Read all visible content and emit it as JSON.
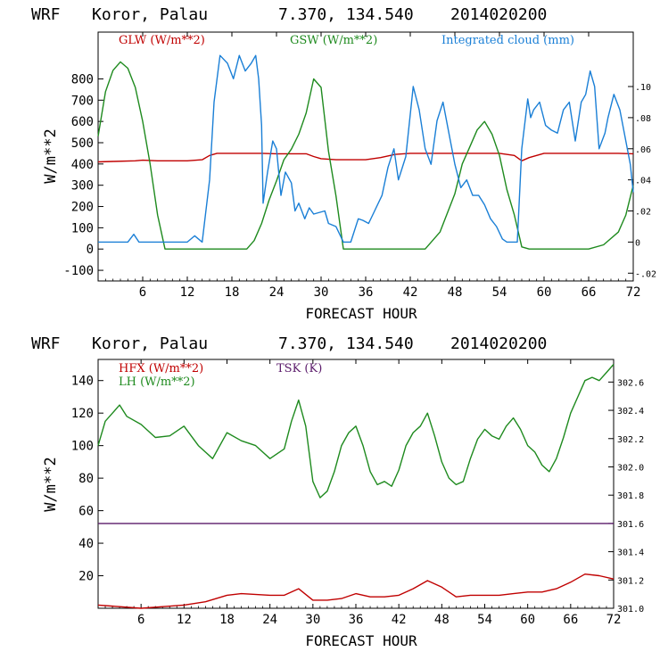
{
  "charts_header": [
    {
      "model": "WRF",
      "location": "Koror, Palau",
      "coords": "7.370, 134.540",
      "init": "2014020200"
    },
    {
      "model": "WRF",
      "location": "Koror, Palau",
      "coords": "7.370, 134.540",
      "init": "2014020200"
    }
  ],
  "colors": {
    "red": "#c00000",
    "green": "#1e8a1e",
    "blue": "#1a7fd6",
    "purple": "#5a1a6a",
    "axis": "#000000"
  },
  "chart_data": [
    {
      "type": "line",
      "xlabel": "FORECAST HOUR",
      "ylabel": "W/m**2",
      "xlim": [
        0,
        72
      ],
      "ylim": [
        -150,
        1020
      ],
      "y2lim": [
        -0.025,
        0.135
      ],
      "x_ticks": [
        6,
        12,
        18,
        24,
        30,
        36,
        42,
        48,
        54,
        60,
        66,
        72
      ],
      "y_ticks": [
        -100,
        0,
        100,
        200,
        300,
        400,
        500,
        600,
        700,
        800
      ],
      "y2_ticks": [
        -0.02,
        0,
        0.02,
        0.04,
        0.06,
        0.08,
        0.1
      ],
      "y2_tick_labels": [
        "-.02",
        "0",
        ".02",
        ".04",
        ".06",
        ".08",
        ".10"
      ],
      "series": [
        {
          "name": "GLW (W/m**2)",
          "color": "red",
          "axis": "left",
          "x": [
            0,
            2,
            5,
            6,
            8,
            10,
            12,
            14,
            15,
            16,
            18,
            20,
            22,
            24,
            26,
            28,
            29,
            30,
            32,
            34,
            36,
            38,
            40,
            42,
            44,
            46,
            48,
            50,
            52,
            54,
            56,
            57,
            58,
            60,
            62,
            64,
            66,
            68,
            70,
            72
          ],
          "values": [
            410,
            412,
            415,
            418,
            415,
            415,
            415,
            420,
            440,
            450,
            450,
            450,
            450,
            448,
            448,
            448,
            435,
            425,
            420,
            420,
            420,
            430,
            445,
            450,
            450,
            450,
            450,
            450,
            450,
            450,
            440,
            415,
            430,
            450,
            450,
            450,
            450,
            450,
            450,
            448
          ]
        },
        {
          "name": "GSW (W/m**2)",
          "color": "green",
          "axis": "left",
          "x": [
            0,
            1,
            2,
            3,
            4,
            5,
            6,
            7,
            8,
            9,
            10,
            20,
            21,
            22,
            23,
            24,
            25,
            26,
            27,
            28,
            29,
            30,
            31,
            32,
            33,
            40,
            44,
            46,
            48,
            49,
            50,
            51,
            52,
            53,
            54,
            55,
            56,
            57,
            58,
            66,
            68,
            70,
            71,
            72
          ],
          "values": [
            530,
            740,
            840,
            880,
            850,
            760,
            600,
            400,
            160,
            0,
            0,
            0,
            40,
            120,
            230,
            320,
            420,
            470,
            540,
            640,
            800,
            760,
            460,
            250,
            0,
            0,
            0,
            80,
            260,
            400,
            480,
            560,
            600,
            540,
            440,
            280,
            160,
            10,
            0,
            0,
            20,
            80,
            160,
            300
          ]
        },
        {
          "name": "Integrated cloud (mm)",
          "color": "blue",
          "axis": "right",
          "x": [
            0,
            4,
            4.8,
            5.5,
            12,
            13,
            14,
            15,
            15.6,
            16.4,
            17.4,
            18.2,
            19,
            19.8,
            20.6,
            21.2,
            21.6,
            22,
            22.2,
            22.8,
            23.5,
            24,
            24.6,
            25.2,
            26,
            26.5,
            27,
            27.8,
            28.4,
            29,
            30.5,
            31,
            32,
            33,
            34,
            35,
            35.6,
            36.4,
            37.2,
            38.2,
            39,
            39.8,
            40.4,
            41.4,
            42.4,
            43.2,
            44,
            44.8,
            45.6,
            46.4,
            47.2,
            48,
            48.8,
            49.6,
            50.4,
            51.2,
            52,
            52.8,
            53.6,
            54.4,
            55,
            55.8,
            56.4,
            57,
            57.8,
            58.2,
            58.6,
            59.4,
            60.2,
            61,
            61.8,
            62.6,
            63.4,
            64.2,
            65,
            65.6,
            66.2,
            66.8,
            67.4,
            68.2,
            68.6,
            69.4,
            70.2,
            71,
            71.6,
            72
          ],
          "values": [
            0,
            0,
            0.005,
            0,
            0,
            0.004,
            0,
            0.04,
            0.09,
            0.12,
            0.115,
            0.105,
            0.12,
            0.11,
            0.115,
            0.12,
            0.105,
            0.075,
            0.025,
            0.045,
            0.065,
            0.06,
            0.03,
            0.045,
            0.038,
            0.02,
            0.025,
            0.015,
            0.022,
            0.018,
            0.02,
            0.012,
            0.01,
            0.0,
            0.0,
            0.015,
            0.014,
            0.012,
            0.02,
            0.03,
            0.048,
            0.06,
            0.04,
            0.055,
            0.1,
            0.085,
            0.06,
            0.05,
            0.078,
            0.09,
            0.07,
            0.05,
            0.035,
            0.04,
            0.03,
            0.03,
            0.024,
            0.015,
            0.01,
            0.002,
            0.0,
            0.0,
            0.0,
            0.06,
            0.092,
            0.08,
            0.085,
            0.09,
            0.075,
            0.072,
            0.07,
            0.085,
            0.09,
            0.065,
            0.09,
            0.095,
            0.11,
            0.1,
            0.06,
            0.07,
            0.08,
            0.095,
            0.085,
            0.065,
            0.05,
            0.032
          ]
        }
      ]
    },
    {
      "type": "line",
      "xlabel": "FORECAST HOUR",
      "ylabel": "W/m**2",
      "xlim": [
        0,
        72
      ],
      "ylim": [
        0,
        153
      ],
      "y2lim": [
        301.0,
        302.76
      ],
      "x_ticks": [
        6,
        12,
        18,
        24,
        30,
        36,
        42,
        48,
        54,
        60,
        66,
        72
      ],
      "y_ticks": [
        20,
        40,
        60,
        80,
        100,
        120,
        140
      ],
      "y2_ticks": [
        301.0,
        301.2,
        301.4,
        301.6,
        301.8,
        302.0,
        302.2,
        302.4,
        302.6
      ],
      "y2_tick_labels": [
        "301.0",
        "301.2",
        "301.4",
        "301.6",
        "301.8",
        "302.0",
        "302.2",
        "302.4",
        "302.6"
      ],
      "series": [
        {
          "name": "HFX (W/m**2)",
          "color": "red",
          "axis": "left",
          "x": [
            0,
            3,
            6,
            9,
            12,
            15,
            18,
            20,
            24,
            26,
            28,
            30,
            32,
            34,
            36,
            38,
            40,
            42,
            44,
            46,
            48,
            50,
            52,
            54,
            56,
            58,
            60,
            62,
            64,
            66,
            68,
            70,
            72
          ],
          "values": [
            2,
            1,
            0,
            1,
            2,
            4,
            8,
            9,
            8,
            8,
            12,
            5,
            5,
            6,
            9,
            7,
            7,
            8,
            12,
            17,
            13,
            7,
            8,
            8,
            8,
            9,
            10,
            10,
            12,
            16,
            21,
            20,
            18
          ]
        },
        {
          "name": "LH (W/m**2)",
          "color": "green",
          "axis": "left",
          "x": [
            0,
            1,
            2,
            3,
            4,
            6,
            8,
            10,
            12,
            14,
            16,
            18,
            20,
            22,
            24,
            26,
            27,
            28,
            29,
            30,
            31,
            32,
            33,
            34,
            35,
            36,
            37,
            38,
            39,
            40,
            41,
            42,
            43,
            44,
            45,
            46,
            47,
            48,
            49,
            50,
            51,
            52,
            53,
            54,
            55,
            56,
            57,
            58,
            59,
            60,
            61,
            62,
            63,
            64,
            65,
            66,
            67,
            68,
            69,
            70,
            71,
            72
          ],
          "values": [
            100,
            115,
            120,
            125,
            118,
            113,
            105,
            106,
            112,
            100,
            92,
            108,
            103,
            100,
            92,
            98,
            115,
            128,
            112,
            78,
            68,
            72,
            84,
            100,
            108,
            112,
            100,
            84,
            76,
            78,
            75,
            85,
            100,
            108,
            112,
            120,
            106,
            90,
            80,
            76,
            78,
            92,
            104,
            110,
            106,
            104,
            112,
            117,
            110,
            100,
            96,
            88,
            84,
            92,
            105,
            120,
            130,
            140,
            142,
            140,
            145,
            150
          ]
        },
        {
          "name": "TSK (K)",
          "color": "purple",
          "axis": "right",
          "x": [
            0,
            72
          ],
          "values": [
            301.6,
            301.6
          ]
        }
      ]
    }
  ]
}
